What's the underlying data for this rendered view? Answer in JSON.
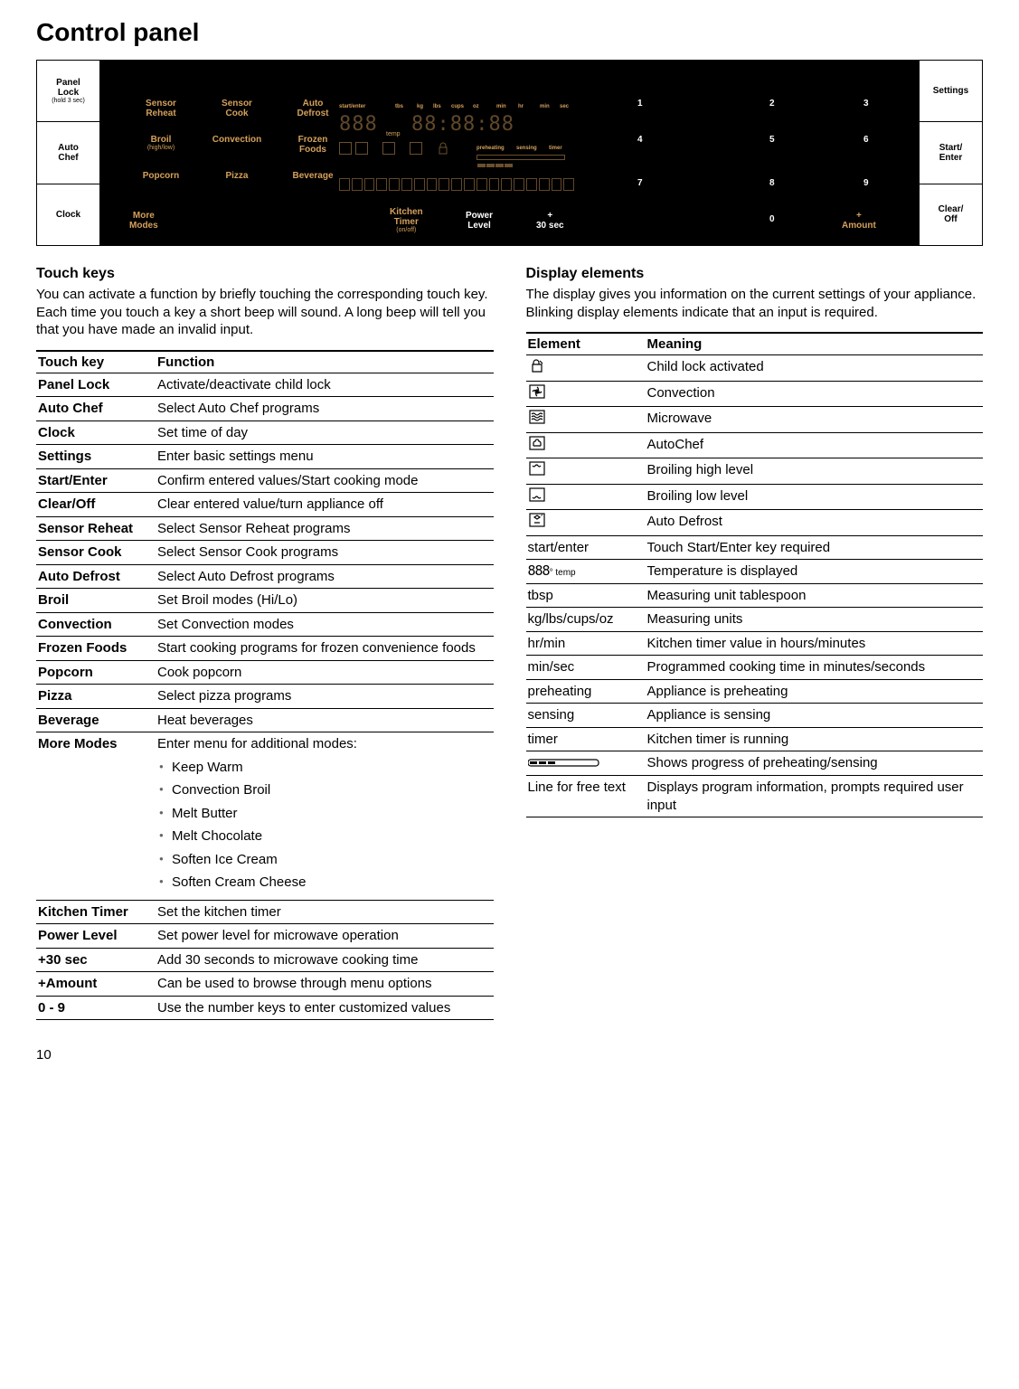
{
  "page_number": "10",
  "title": "Control panel",
  "panel": {
    "accent_color": "#d4a05b",
    "left_buttons": [
      {
        "label": "Panel\nLock",
        "sub": "(hold 3 sec)"
      },
      {
        "label": "Auto\nChef",
        "sub": ""
      },
      {
        "label": "Clock",
        "sub": ""
      }
    ],
    "right_buttons": [
      {
        "label": "Settings",
        "sub": ""
      },
      {
        "label": "Start/\nEnter",
        "sub": ""
      },
      {
        "label": "Clear/\nOff",
        "sub": ""
      }
    ],
    "prog_grid": [
      [
        {
          "t": "Sensor\nReheat"
        },
        {
          "t": "Sensor\nCook"
        },
        {
          "t": "Auto\nDefrost"
        }
      ],
      [
        {
          "t": "Broil",
          "s": "(high/low)"
        },
        {
          "t": "Convection"
        },
        {
          "t": "Frozen\nFoods"
        }
      ],
      [
        {
          "t": "Popcorn"
        },
        {
          "t": "Pizza"
        },
        {
          "t": "Beverage"
        }
      ]
    ],
    "bottom_row_left": {
      "t": "More\nModes",
      "color": "accent"
    },
    "bottom_row_mid": [
      {
        "t": "Kitchen\nTimer",
        "s": "(on/off)",
        "color": "accent"
      },
      {
        "t": "Power\nLevel",
        "color": "white"
      },
      {
        "t": "+\n30 sec",
        "color": "white"
      }
    ],
    "keypad": [
      [
        "1",
        "2",
        "3"
      ],
      [
        "4",
        "5",
        "6"
      ],
      [
        "7",
        "8",
        "9"
      ]
    ],
    "keypad_bottom": [
      {
        "t": "0",
        "color": "white"
      },
      {
        "t": "+\nAmount",
        "color": "accent"
      }
    ],
    "display": {
      "top_labels": [
        "start/enter",
        "tbs",
        "kg",
        "lbs",
        "cups",
        "oz",
        "min",
        "hr",
        "min",
        "sec"
      ],
      "temp_label": "temp",
      "status_labels": [
        "preheating",
        "sensing",
        "timer"
      ]
    }
  },
  "touch_keys": {
    "heading": "Touch keys",
    "intro": "You can activate a function by briefly touching the corresponding touch key. Each time you touch a key a short beep will sound. A long beep will tell you that you have made an invalid input.",
    "col_headers": [
      "Touch key",
      "Function"
    ],
    "rows": [
      {
        "k": "Panel Lock",
        "v": "Activate/deactivate child lock"
      },
      {
        "k": "Auto Chef",
        "v": "Select Auto Chef programs"
      },
      {
        "k": "Clock",
        "v": "Set time of day"
      },
      {
        "k": "Settings",
        "v": "Enter basic settings menu"
      },
      {
        "k": "Start/Enter",
        "v": "Confirm entered values/Start cooking mode"
      },
      {
        "k": "Clear/Off",
        "v": "Clear entered value/turn appliance off"
      },
      {
        "k": "Sensor Reheat",
        "v": "Select Sensor Reheat programs"
      },
      {
        "k": "Sensor Cook",
        "v": "Select Sensor Cook programs"
      },
      {
        "k": "Auto Defrost",
        "v": "Select Auto Defrost programs"
      },
      {
        "k": "Broil",
        "v": "Set Broil modes (Hi/Lo)"
      },
      {
        "k": "Convection",
        "v": "Set Convection modes"
      },
      {
        "k": "Frozen Foods",
        "v": "Start cooking programs for frozen convenience foods"
      },
      {
        "k": "Popcorn",
        "v": "Cook popcorn"
      },
      {
        "k": "Pizza",
        "v": "Select pizza programs"
      },
      {
        "k": "Beverage",
        "v": "Heat beverages"
      },
      {
        "k": "More Modes",
        "v": "Enter menu for additional modes:",
        "list": [
          "Keep Warm",
          "Convection Broil",
          "Melt Butter",
          "Melt Chocolate",
          "Soften Ice Cream",
          "Soften Cream Cheese"
        ]
      },
      {
        "k": "Kitchen Timer",
        "v": "Set the kitchen timer"
      },
      {
        "k": "Power Level",
        "v": "Set power level for microwave operation"
      },
      {
        "k": "+30 sec",
        "v": "Add 30 seconds to microwave cooking time"
      },
      {
        "k": "+Amount",
        "v": "Can be used to browse through menu options"
      },
      {
        "k": "0 - 9",
        "v": "Use the number keys to enter customized values"
      }
    ]
  },
  "display_elements": {
    "heading": "Display elements",
    "intro": "The display gives you information on the current settings of your appliance. Blinking display elements indicate that an input is required.",
    "col_headers": [
      "Element",
      "Meaning"
    ],
    "rows": [
      {
        "icon": "lock",
        "v": "Child lock activated"
      },
      {
        "icon": "fan",
        "v": "Convection"
      },
      {
        "icon": "waves",
        "v": "Microwave"
      },
      {
        "icon": "chef",
        "v": "AutoChef"
      },
      {
        "icon": "broil-hi",
        "v": "Broiling high level"
      },
      {
        "icon": "broil-lo",
        "v": "Broiling low level"
      },
      {
        "icon": "defrost",
        "v": "Auto Defrost"
      },
      {
        "k": "start/enter",
        "v": "Touch Start/Enter key required"
      },
      {
        "icon": "temp",
        "v": "Temperature is displayed"
      },
      {
        "k": "tbsp",
        "v": "Measuring unit tablespoon"
      },
      {
        "k": "kg/lbs/cups/oz",
        "v": "Measuring units"
      },
      {
        "k": "hr/min",
        "v": "Kitchen timer value in hours/minutes"
      },
      {
        "k": "min/sec",
        "v": "Programmed cooking time in minutes/seconds"
      },
      {
        "k": "preheating",
        "v": "Appliance is preheating"
      },
      {
        "k": "sensing",
        "v": "Appliance is sensing"
      },
      {
        "k": "timer",
        "v": "Kitchen timer is running"
      },
      {
        "icon": "pbar",
        "v": "Shows progress of preheating/sensing"
      },
      {
        "k": "Line for free text",
        "v": "Displays program information, prompts required user input"
      }
    ]
  }
}
